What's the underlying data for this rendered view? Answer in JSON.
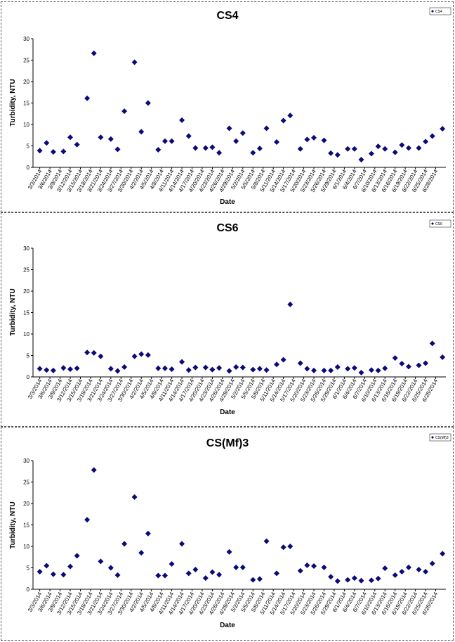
{
  "colors": {
    "marker": "#0A0A78",
    "axis": "#000000",
    "frame": "#555555"
  },
  "x_dates": [
    "3/3/2014",
    "3/6/2014",
    "3/9/2014",
    "3/12/2014",
    "3/15/2014",
    "3/18/2014",
    "3/21/2014",
    "3/24/2014",
    "3/27/2014",
    "3/30/2014",
    "4/2/2014",
    "4/5/2014",
    "4/8/2014",
    "4/11/2014",
    "4/14/2014",
    "4/17/2014",
    "4/20/2014",
    "4/23/2014",
    "4/26/2014",
    "4/29/2014",
    "5/2/2014",
    "5/5/2014",
    "5/8/2014",
    "5/11/2014",
    "5/14/2014",
    "5/17/2014",
    "5/20/2014",
    "5/23/2014",
    "5/26/2014",
    "5/29/2014",
    "6/1/2014",
    "6/4/2014",
    "6/7/2014",
    "6/10/2014",
    "6/13/2014",
    "6/16/2014",
    "6/19/2014",
    "6/22/2014",
    "6/25/2014",
    "6/28/2014"
  ],
  "chart_data": [
    {
      "type": "scatter",
      "title": "CS4",
      "xlabel": "Date",
      "ylabel": "Turbidity, NTU",
      "ylim": [
        0,
        30
      ],
      "yticks": [
        "0",
        "5",
        "10",
        "15",
        "20",
        "25",
        "30"
      ],
      "grid": false,
      "legend_position": "top-right",
      "series": [
        {
          "name": "CS4",
          "x": [
            "3/3/2014",
            "3/5/2014",
            "3/7/2014",
            "3/10/2014",
            "3/12/2014",
            "3/14/2014",
            "3/17/2014",
            "3/19/2014",
            "3/21/2014",
            "3/24/2014",
            "3/26/2014",
            "3/28/2014",
            "3/31/2014",
            "4/2/2014",
            "4/4/2014",
            "4/7/2014",
            "4/9/2014",
            "4/11/2014",
            "4/14/2014",
            "4/16/2014",
            "4/18/2014",
            "4/21/2014",
            "4/23/2014",
            "4/25/2014",
            "4/28/2014",
            "4/30/2014",
            "5/2/2014",
            "5/5/2014",
            "5/7/2014",
            "5/9/2014",
            "5/12/2014",
            "5/14/2014",
            "5/16/2014",
            "5/19/2014",
            "5/21/2014",
            "5/23/2014",
            "5/26/2014",
            "5/28/2014",
            "5/30/2014",
            "6/2/2014",
            "6/4/2014",
            "6/6/2014",
            "6/9/2014",
            "6/11/2014",
            "6/13/2014",
            "6/16/2014",
            "6/18/2014",
            "6/20/2014",
            "6/23/2014",
            "6/25/2014",
            "6/27/2014",
            "6/30/2014"
          ],
          "y": [
            3.9,
            5.7,
            3.6,
            3.7,
            7.0,
            5.3,
            16.1,
            26.6,
            7.0,
            6.6,
            4.2,
            13.1,
            24.5,
            8.3,
            15.0,
            4.1,
            6.1,
            6.1,
            11.0,
            7.3,
            4.5,
            4.5,
            4.7,
            3.4,
            9.1,
            6.1,
            8.0,
            3.4,
            4.4,
            9.1,
            5.9,
            10.9,
            12.1,
            4.3,
            6.5,
            6.9,
            6.3,
            3.3,
            2.9,
            4.3,
            4.3,
            1.8,
            3.2,
            4.9,
            4.3,
            3.5,
            5.2,
            4.5,
            4.5,
            6.0,
            7.3,
            9.0
          ]
        }
      ]
    },
    {
      "type": "scatter",
      "title": "CS6",
      "xlabel": "Date",
      "ylabel": "Turbidity, NTU",
      "ylim": [
        0,
        30
      ],
      "yticks": [
        "0",
        "5",
        "10",
        "15",
        "20",
        "25",
        "30"
      ],
      "grid": false,
      "legend_position": "top-right",
      "series": [
        {
          "name": "CS6",
          "x": [
            "3/3/2014",
            "3/5/2014",
            "3/7/2014",
            "3/10/2014",
            "3/12/2014",
            "3/14/2014",
            "3/17/2014",
            "3/19/2014",
            "3/21/2014",
            "3/24/2014",
            "3/26/2014",
            "3/28/2014",
            "3/31/2014",
            "4/2/2014",
            "4/4/2014",
            "4/7/2014",
            "4/9/2014",
            "4/11/2014",
            "4/14/2014",
            "4/16/2014",
            "4/18/2014",
            "4/21/2014",
            "4/23/2014",
            "4/25/2014",
            "4/28/2014",
            "4/30/2014",
            "5/2/2014",
            "5/5/2014",
            "5/7/2014",
            "5/9/2014",
            "5/12/2014",
            "5/14/2014",
            "5/16/2014",
            "5/19/2014",
            "5/21/2014",
            "5/23/2014",
            "5/26/2014",
            "5/28/2014",
            "5/30/2014",
            "6/2/2014",
            "6/4/2014",
            "6/6/2014",
            "6/9/2014",
            "6/11/2014",
            "6/13/2014",
            "6/16/2014",
            "6/18/2014",
            "6/20/2014",
            "6/23/2014",
            "6/25/2014",
            "6/27/2014",
            "6/30/2014"
          ],
          "y": [
            1.9,
            1.6,
            1.5,
            2.1,
            1.8,
            2.0,
            5.7,
            5.6,
            4.8,
            1.9,
            1.4,
            2.3,
            4.8,
            5.3,
            5.1,
            2.0,
            2.0,
            1.8,
            3.5,
            1.6,
            2.2,
            2.2,
            1.7,
            2.1,
            1.4,
            2.3,
            2.2,
            1.7,
            1.9,
            1.6,
            2.9,
            4.0,
            16.9,
            3.2,
            1.9,
            1.5,
            1.5,
            1.5,
            2.3,
            1.9,
            2.1,
            1.0,
            1.6,
            1.5,
            2.0,
            4.4,
            3.1,
            2.4,
            2.7,
            3.2,
            7.8,
            4.6
          ]
        }
      ]
    },
    {
      "type": "scatter",
      "title": "CS(Mf)3",
      "xlabel": "Date",
      "ylabel": "Turbidity, NTU",
      "ylim": [
        0,
        30
      ],
      "yticks": [
        "0",
        "5",
        "10",
        "15",
        "20",
        "25",
        "30"
      ],
      "grid": false,
      "legend_position": "top-right",
      "series": [
        {
          "name": "CS(Mf)3",
          "x": [
            "3/3/2014",
            "3/5/2014",
            "3/7/2014",
            "3/10/2014",
            "3/12/2014",
            "3/14/2014",
            "3/17/2014",
            "3/19/2014",
            "3/21/2014",
            "3/24/2014",
            "3/26/2014",
            "3/28/2014",
            "3/31/2014",
            "4/2/2014",
            "4/4/2014",
            "4/7/2014",
            "4/9/2014",
            "4/11/2014",
            "4/14/2014",
            "4/16/2014",
            "4/18/2014",
            "4/21/2014",
            "4/23/2014",
            "4/25/2014",
            "4/28/2014",
            "4/30/2014",
            "5/2/2014",
            "5/5/2014",
            "5/7/2014",
            "5/9/2014",
            "5/12/2014",
            "5/14/2014",
            "5/16/2014",
            "5/19/2014",
            "5/21/2014",
            "5/23/2014",
            "5/26/2014",
            "5/28/2014",
            "5/30/2014",
            "6/2/2014",
            "6/4/2014",
            "6/6/2014",
            "6/9/2014",
            "6/11/2014",
            "6/13/2014",
            "6/16/2014",
            "6/18/2014",
            "6/20/2014",
            "6/23/2014",
            "6/25/2014",
            "6/27/2014",
            "6/30/2014"
          ],
          "y": [
            4.1,
            5.5,
            3.5,
            3.4,
            5.3,
            7.8,
            16.2,
            27.8,
            6.5,
            5.0,
            3.3,
            10.6,
            21.5,
            8.5,
            13.0,
            3.2,
            3.2,
            5.9,
            10.6,
            3.7,
            4.6,
            2.6,
            4.0,
            3.4,
            8.7,
            5.1,
            5.1,
            2.2,
            2.4,
            11.2,
            3.7,
            9.8,
            10.0,
            4.3,
            5.6,
            5.4,
            5.1,
            2.9,
            1.9,
            2.2,
            2.6,
            2.0,
            2.1,
            2.5,
            4.9,
            3.3,
            4.1,
            5.1,
            4.6,
            4.1,
            6.0,
            8.3
          ]
        }
      ]
    }
  ]
}
